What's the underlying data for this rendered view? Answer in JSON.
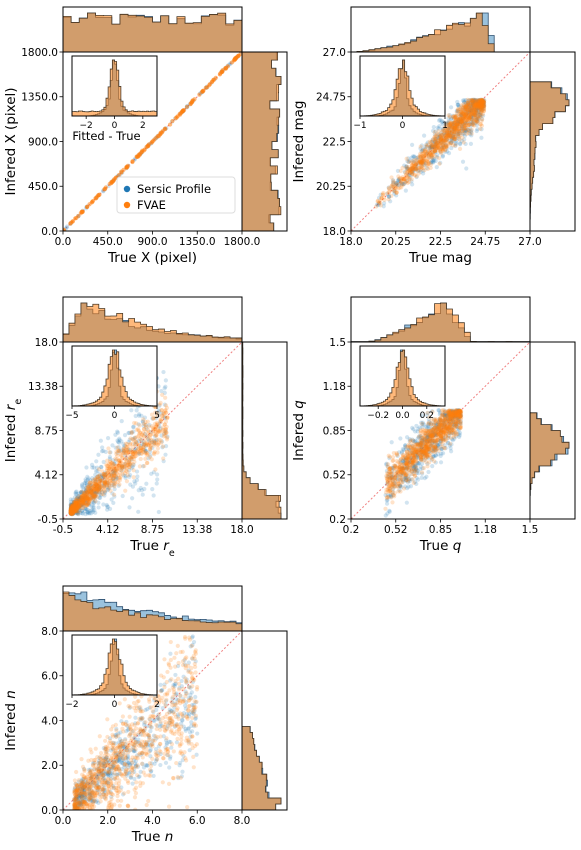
{
  "colors": {
    "sersic": "#1f77b4",
    "fvae": "#ff7f0e",
    "diag": "#f08080"
  },
  "legend": {
    "items": [
      "Sersic Profile",
      "FVAE"
    ]
  },
  "chart_data": [
    {
      "type": "scatter",
      "xlabel": "True X (pixel)",
      "ylabel": "Infered X (pixel)",
      "xlim": [
        0,
        1800
      ],
      "ylim": [
        0,
        1800
      ],
      "xticks": [
        "0.0",
        "450.0",
        "900.0",
        "1350.0",
        "1800.0"
      ],
      "yticks": [
        "0.0",
        "450.0",
        "900.0",
        "1350.0",
        "1800.0"
      ],
      "inset_xlabel": "Fitted - True",
      "inset_xlim": [
        -3,
        3
      ],
      "inset_xticks": [
        "−2",
        "0",
        "2"
      ],
      "has_legend": true,
      "scatter_model": "identity"
    },
    {
      "type": "scatter",
      "xlabel": "True mag",
      "ylabel": "Infered mag",
      "xlim": [
        18,
        27
      ],
      "ylim": [
        18,
        27
      ],
      "xticks": [
        "18.0",
        "20.25",
        "22.5",
        "24.75",
        "27.0"
      ],
      "yticks": [
        "18.0",
        "20.25",
        "22.5",
        "24.75",
        "27.0"
      ],
      "inset_xlabel": "",
      "inset_xlim": [
        -1,
        1
      ],
      "inset_xticks": [
        "−1",
        "0",
        "1"
      ],
      "has_legend": false,
      "scatter_model": "mag"
    },
    {
      "type": "scatter",
      "xlabel": "True r_e",
      "ylabel": "Infered r_e",
      "xlim": [
        -0.5,
        18
      ],
      "ylim": [
        -0.5,
        18
      ],
      "xticks": [
        "-0.5",
        "4.12",
        "8.75",
        "13.38",
        "18.0"
      ],
      "yticks": [
        "-0.5",
        "4.12",
        "8.75",
        "13.38",
        "18.0"
      ],
      "inset_xlabel": "",
      "inset_xlim": [
        -5,
        5
      ],
      "inset_xticks": [
        "−5",
        "0",
        "5"
      ],
      "has_legend": false,
      "scatter_model": "re"
    },
    {
      "type": "scatter",
      "xlabel": "True q",
      "ylabel": "Infered q",
      "xlim": [
        0.2,
        1.5
      ],
      "ylim": [
        0.2,
        1.5
      ],
      "xticks": [
        "0.2",
        "0.52",
        "0.85",
        "1.18",
        "1.5"
      ],
      "yticks": [
        "0.2",
        "0.52",
        "0.85",
        "1.18",
        "1.5"
      ],
      "inset_xlabel": "",
      "inset_xlim": [
        -0.35,
        0.35
      ],
      "inset_xticks": [
        "−0.2",
        "0.0",
        "0.2"
      ],
      "has_legend": false,
      "scatter_model": "q"
    },
    {
      "type": "scatter",
      "xlabel": "True n",
      "ylabel": "Infered n",
      "xlim": [
        0,
        8
      ],
      "ylim": [
        0,
        8
      ],
      "xticks": [
        "0.0",
        "2.0",
        "4.0",
        "6.0",
        "8.0"
      ],
      "yticks": [
        "0.0",
        "2.0",
        "4.0",
        "6.0",
        "8.0"
      ],
      "inset_xlabel": "",
      "inset_xlim": [
        -2,
        2
      ],
      "inset_xticks": [
        "−2",
        "0",
        "2"
      ],
      "has_legend": false,
      "scatter_model": "n"
    }
  ]
}
